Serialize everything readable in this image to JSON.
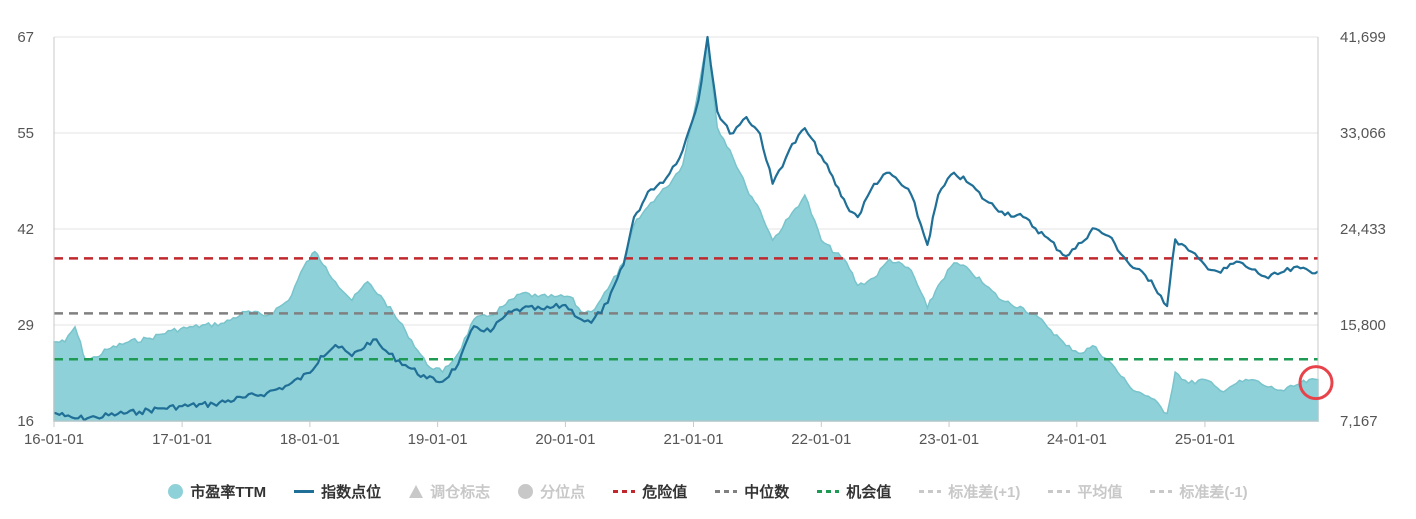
{
  "colors": {
    "pe_fill": "#8fd1d9",
    "pe_stroke": "#79c4cc",
    "index_line": "#1f6f97",
    "danger": "#c0282d",
    "median": "#808080",
    "opportunity": "#1e9a55",
    "off": "#c8c8c8",
    "highlight": "#e8434a"
  },
  "chart_data": {
    "type": "area",
    "x_axis": {
      "type": "date",
      "range": [
        "2016-01-01",
        "2025-11-20"
      ],
      "ticks": [
        "16-01-01",
        "17-01-01",
        "18-01-01",
        "19-01-01",
        "20-01-01",
        "21-01-01",
        "22-01-01",
        "23-01-01",
        "24-01-01",
        "25-01-01"
      ]
    },
    "y_left": {
      "range": [
        16,
        67
      ],
      "ticks": [
        "16",
        "29",
        "42",
        "55",
        "67"
      ]
    },
    "y_right": {
      "range": [
        7167,
        41699
      ],
      "ticks": [
        "7,167",
        "15,800",
        "24,433",
        "33,066",
        "41,699"
      ]
    },
    "grid": "horizontal",
    "legend_position": "bottom",
    "reference_lines": [
      {
        "name": "危险值",
        "y": 37.6
      },
      {
        "name": "中位数",
        "y": 30.3
      },
      {
        "name": "机会值",
        "y": 24.2
      }
    ],
    "series": [
      {
        "name": "市盈率TTM",
        "axis": "left",
        "points": [
          [
            "2016-01-01",
            26.5
          ],
          [
            "2016-02-01",
            26.5
          ],
          [
            "2016-03-01",
            28.5
          ],
          [
            "2016-04-01",
            24.0
          ],
          [
            "2016-05-01",
            24.5
          ],
          [
            "2016-06-01",
            25.5
          ],
          [
            "2016-08-01",
            26.5
          ],
          [
            "2016-10-01",
            27.0
          ],
          [
            "2016-12-01",
            28.0
          ],
          [
            "2017-02-01",
            28.5
          ],
          [
            "2017-05-01",
            29.0
          ],
          [
            "2017-07-01",
            30.5
          ],
          [
            "2017-09-01",
            30.0
          ],
          [
            "2017-11-01",
            32.0
          ],
          [
            "2017-12-15",
            36.5
          ],
          [
            "2018-01-15",
            38.5
          ],
          [
            "2018-02-15",
            36.5
          ],
          [
            "2018-03-15",
            34.5
          ],
          [
            "2018-05-01",
            32.0
          ],
          [
            "2018-06-15",
            34.5
          ],
          [
            "2018-08-01",
            32.0
          ],
          [
            "2018-10-01",
            28.0
          ],
          [
            "2018-12-01",
            23.5
          ],
          [
            "2019-01-15",
            22.5
          ],
          [
            "2019-03-01",
            25.0
          ],
          [
            "2019-04-15",
            29.5
          ],
          [
            "2019-06-01",
            30.0
          ],
          [
            "2019-07-15",
            31.5
          ],
          [
            "2019-09-01",
            33.0
          ],
          [
            "2019-10-15",
            32.5
          ],
          [
            "2019-12-01",
            32.5
          ],
          [
            "2020-01-15",
            32.5
          ],
          [
            "2020-02-15",
            30.5
          ],
          [
            "2020-03-15",
            30.5
          ],
          [
            "2020-05-01",
            33.5
          ],
          [
            "2020-06-15",
            37.0
          ],
          [
            "2020-07-15",
            42.0
          ],
          [
            "2020-09-01",
            45.0
          ],
          [
            "2020-10-15",
            47.0
          ],
          [
            "2020-12-01",
            50.0
          ],
          [
            "2021-01-15",
            60.0
          ],
          [
            "2021-02-10",
            67.0
          ],
          [
            "2021-03-10",
            55.0
          ],
          [
            "2021-04-15",
            52.0
          ],
          [
            "2021-06-01",
            47.0
          ],
          [
            "2021-07-10",
            44.0
          ],
          [
            "2021-08-15",
            40.0
          ],
          [
            "2021-10-01",
            43.0
          ],
          [
            "2021-11-15",
            46.0
          ],
          [
            "2022-01-01",
            40.0
          ],
          [
            "2022-03-15",
            37.0
          ],
          [
            "2022-04-15",
            34.0
          ],
          [
            "2022-06-01",
            35.0
          ],
          [
            "2022-07-15",
            37.5
          ],
          [
            "2022-09-15",
            36.0
          ],
          [
            "2022-10-31",
            31.0
          ],
          [
            "2022-12-01",
            34.0
          ],
          [
            "2023-01-15",
            37.0
          ],
          [
            "2023-03-01",
            36.0
          ],
          [
            "2023-04-15",
            34.0
          ],
          [
            "2023-06-01",
            32.0
          ],
          [
            "2023-08-01",
            31.0
          ],
          [
            "2023-10-01",
            29.0
          ],
          [
            "2023-12-01",
            26.0
          ],
          [
            "2024-01-15",
            25.0
          ],
          [
            "2024-02-15",
            26.0
          ],
          [
            "2024-04-01",
            24.0
          ],
          [
            "2024-06-01",
            20.5
          ],
          [
            "2024-08-01",
            19.0
          ],
          [
            "2024-09-15",
            17.0
          ],
          [
            "2024-10-08",
            22.5
          ],
          [
            "2024-11-15",
            21.0
          ],
          [
            "2025-01-01",
            21.5
          ],
          [
            "2025-02-15",
            20.0
          ],
          [
            "2025-04-01",
            21.0
          ],
          [
            "2025-05-15",
            21.5
          ],
          [
            "2025-07-01",
            20.5
          ],
          [
            "2025-08-15",
            20.0
          ],
          [
            "2025-10-01",
            21.0
          ],
          [
            "2025-11-20",
            21.5
          ]
        ]
      },
      {
        "name": "指数点位",
        "axis": "right",
        "points": [
          [
            "2016-01-01",
            7900
          ],
          [
            "2016-02-01",
            7600
          ],
          [
            "2016-03-01",
            7400
          ],
          [
            "2016-05-01",
            7500
          ],
          [
            "2016-07-01",
            7800
          ],
          [
            "2016-09-01",
            8000
          ],
          [
            "2016-11-01",
            8300
          ],
          [
            "2017-01-01",
            8500
          ],
          [
            "2017-04-01",
            8700
          ],
          [
            "2017-07-01",
            9300
          ],
          [
            "2017-09-01",
            9700
          ],
          [
            "2017-11-01",
            10400
          ],
          [
            "2018-01-01",
            11500
          ],
          [
            "2018-02-01",
            13000
          ],
          [
            "2018-03-15",
            14000
          ],
          [
            "2018-05-01",
            13000
          ],
          [
            "2018-07-01",
            14500
          ],
          [
            "2018-08-15",
            13200
          ],
          [
            "2018-10-01",
            12200
          ],
          [
            "2018-12-01",
            11000
          ],
          [
            "2019-01-15",
            10700
          ],
          [
            "2019-03-01",
            12300
          ],
          [
            "2019-04-15",
            15700
          ],
          [
            "2019-06-01",
            15200
          ],
          [
            "2019-07-15",
            16700
          ],
          [
            "2019-09-01",
            17300
          ],
          [
            "2019-11-01",
            17200
          ],
          [
            "2020-01-01",
            17600
          ],
          [
            "2020-02-15",
            16300
          ],
          [
            "2020-03-15",
            16000
          ],
          [
            "2020-05-01",
            17800
          ],
          [
            "2020-06-15",
            21200
          ],
          [
            "2020-07-15",
            25500
          ],
          [
            "2020-09-01",
            28000
          ],
          [
            "2020-10-15",
            29000
          ],
          [
            "2020-12-01",
            31500
          ],
          [
            "2021-01-15",
            36000
          ],
          [
            "2021-02-10",
            41699
          ],
          [
            "2021-03-10",
            35000
          ],
          [
            "2021-04-15",
            33000
          ],
          [
            "2021-06-01",
            34500
          ],
          [
            "2021-07-10",
            33000
          ],
          [
            "2021-08-15",
            28500
          ],
          [
            "2021-10-01",
            31500
          ],
          [
            "2021-11-15",
            33500
          ],
          [
            "2022-01-01",
            31000
          ],
          [
            "2022-03-15",
            26500
          ],
          [
            "2022-04-15",
            25500
          ],
          [
            "2022-06-01",
            28500
          ],
          [
            "2022-07-15",
            29500
          ],
          [
            "2022-09-15",
            27500
          ],
          [
            "2022-10-31",
            23000
          ],
          [
            "2022-12-01",
            27500
          ],
          [
            "2023-01-15",
            29500
          ],
          [
            "2023-03-01",
            28500
          ],
          [
            "2023-04-15",
            27000
          ],
          [
            "2023-06-01",
            26000
          ],
          [
            "2023-08-01",
            25500
          ],
          [
            "2023-10-01",
            23800
          ],
          [
            "2023-12-01",
            22000
          ],
          [
            "2024-01-15",
            23200
          ],
          [
            "2024-02-15",
            24500
          ],
          [
            "2024-04-01",
            23800
          ],
          [
            "2024-06-01",
            21200
          ],
          [
            "2024-08-01",
            19800
          ],
          [
            "2024-09-15",
            17500
          ],
          [
            "2024-10-08",
            23500
          ],
          [
            "2024-11-15",
            22500
          ],
          [
            "2025-01-01",
            21200
          ],
          [
            "2025-02-15",
            20500
          ],
          [
            "2025-04-01",
            21500
          ],
          [
            "2025-05-15",
            20800
          ],
          [
            "2025-07-01",
            20000
          ],
          [
            "2025-08-15",
            20600
          ],
          [
            "2025-10-01",
            20900
          ],
          [
            "2025-11-20",
            20600
          ]
        ]
      }
    ],
    "legend": [
      {
        "label": "市盈率TTM",
        "symbol": "circle",
        "color": "#8fd1d9",
        "active": true
      },
      {
        "label": "指数点位",
        "symbol": "line",
        "color": "#1f6f97",
        "active": true
      },
      {
        "label": "调仓标志",
        "symbol": "triangle",
        "color": "#c8c8c8",
        "active": false
      },
      {
        "label": "分位点",
        "symbol": "circle",
        "color": "#c8c8c8",
        "active": false
      },
      {
        "label": "危险值",
        "symbol": "dash",
        "color": "#c0282d",
        "active": true
      },
      {
        "label": "中位数",
        "symbol": "dash",
        "color": "#808080",
        "active": true
      },
      {
        "label": "机会值",
        "symbol": "dash",
        "color": "#1e9a55",
        "active": true
      },
      {
        "label": "标准差(+1)",
        "symbol": "dash",
        "color": "#c8c8c8",
        "active": false
      },
      {
        "label": "平均值",
        "symbol": "dash",
        "color": "#c8c8c8",
        "active": false
      },
      {
        "label": "标准差(-1)",
        "symbol": "dash",
        "color": "#c8c8c8",
        "active": false
      }
    ],
    "highlight": {
      "shape": "circle",
      "at": [
        "2025-11-20",
        21.5
      ]
    }
  }
}
